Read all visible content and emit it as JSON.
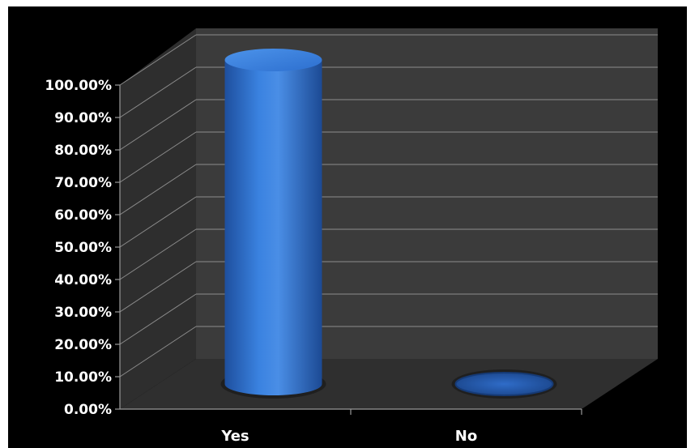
{
  "chart_data": {
    "type": "bar",
    "style": "3d-cylinder",
    "categories": [
      "Yes",
      "No"
    ],
    "series": [
      {
        "values": [
          1.0,
          0.0
        ],
        "color": "#2e6fd1"
      }
    ],
    "ylim": [
      0,
      1
    ],
    "y_ticks": [
      {
        "value": 0.0,
        "label": "0.00%"
      },
      {
        "value": 0.1,
        "label": "10.00%"
      },
      {
        "value": 0.2,
        "label": "20.00%"
      },
      {
        "value": 0.3,
        "label": "30.00%"
      },
      {
        "value": 0.4,
        "label": "40.00%"
      },
      {
        "value": 0.5,
        "label": "50.00%"
      },
      {
        "value": 0.6,
        "label": "60.00%"
      },
      {
        "value": 0.7,
        "label": "70.00%"
      },
      {
        "value": 0.8,
        "label": "80.00%"
      },
      {
        "value": 0.9,
        "label": "90.00%"
      },
      {
        "value": 1.0,
        "label": "100.00%"
      }
    ],
    "grid": true,
    "legend": "none",
    "colors": {
      "background": "#000000",
      "wall": "#3b3b3b",
      "floor": "#2f2f2f",
      "gridline": "#8c8c8c"
    }
  }
}
